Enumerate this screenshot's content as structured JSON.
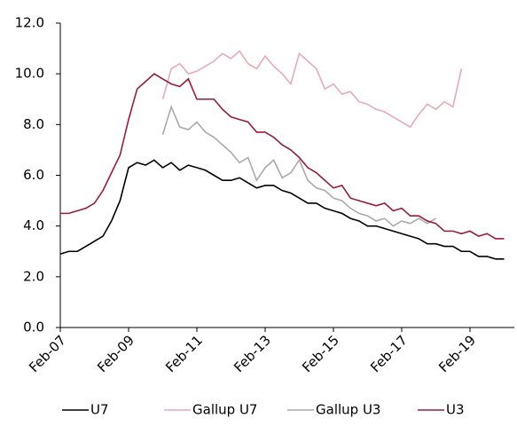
{
  "chart_data": {
    "type": "line",
    "categories": [
      "Feb-07",
      null,
      null,
      null,
      null,
      null,
      null,
      null,
      "Feb-09",
      null,
      null,
      null,
      null,
      null,
      null,
      null,
      "Feb-11",
      null,
      null,
      null,
      null,
      null,
      null,
      null,
      "Feb-13",
      null,
      null,
      null,
      null,
      null,
      null,
      null,
      "Feb-15",
      null,
      null,
      null,
      null,
      null,
      null,
      null,
      "Feb-17",
      null,
      null,
      null,
      null,
      null,
      null,
      null,
      "Feb-19",
      null,
      null,
      null,
      null
    ],
    "series": [
      {
        "name": "U7",
        "color": "#000000",
        "values": [
          2.9,
          3.0,
          3.0,
          3.2,
          3.4,
          3.6,
          4.2,
          5.0,
          6.3,
          6.5,
          6.4,
          6.6,
          6.3,
          6.5,
          6.2,
          6.4,
          6.3,
          6.2,
          6.0,
          5.8,
          5.8,
          5.9,
          5.7,
          5.5,
          5.6,
          5.6,
          5.4,
          5.3,
          5.1,
          4.9,
          4.9,
          4.7,
          4.6,
          4.5,
          4.3,
          4.2,
          4.0,
          4.0,
          3.9,
          3.8,
          3.7,
          3.6,
          3.5,
          3.3,
          3.3,
          3.2,
          3.2,
          3.0,
          3.0,
          2.8,
          2.8,
          2.7,
          2.7
        ]
      },
      {
        "name": "Gallup U7",
        "color": "#e8a9b8",
        "values": [
          null,
          null,
          null,
          null,
          null,
          null,
          null,
          null,
          null,
          null,
          null,
          null,
          9.0,
          10.2,
          10.4,
          10.0,
          10.1,
          10.3,
          10.5,
          10.8,
          10.6,
          10.9,
          10.4,
          10.2,
          10.7,
          10.3,
          10.0,
          9.6,
          10.8,
          10.5,
          10.2,
          9.4,
          9.6,
          9.2,
          9.3,
          8.9,
          8.8,
          8.6,
          8.5,
          8.3,
          8.1,
          7.9,
          8.4,
          8.8,
          8.6,
          8.9,
          8.7,
          10.2,
          null,
          null,
          null,
          null,
          null
        ]
      },
      {
        "name": "Gallup U3",
        "color": "#aaaaaa",
        "values": [
          null,
          null,
          null,
          null,
          null,
          null,
          null,
          null,
          null,
          null,
          null,
          null,
          7.6,
          8.7,
          7.9,
          7.8,
          8.1,
          7.7,
          7.5,
          7.2,
          6.9,
          6.5,
          6.7,
          5.8,
          6.3,
          6.6,
          5.9,
          6.1,
          6.6,
          5.8,
          5.5,
          5.4,
          5.1,
          5.0,
          4.7,
          4.5,
          4.4,
          4.2,
          4.3,
          4.0,
          4.2,
          4.1,
          4.3,
          4.1,
          4.3,
          null,
          null,
          null,
          null,
          null,
          null,
          null,
          null
        ]
      },
      {
        "name": "U3",
        "color": "#9b1b3d",
        "values": [
          4.5,
          4.5,
          4.6,
          4.7,
          4.9,
          5.4,
          6.1,
          6.8,
          8.2,
          9.4,
          9.7,
          10.0,
          9.8,
          9.6,
          9.5,
          9.8,
          9.0,
          9.0,
          9.0,
          8.6,
          8.3,
          8.2,
          8.1,
          7.7,
          7.7,
          7.5,
          7.2,
          7.0,
          6.7,
          6.3,
          6.1,
          5.8,
          5.5,
          5.6,
          5.1,
          5.0,
          4.9,
          4.8,
          4.9,
          4.6,
          4.7,
          4.4,
          4.4,
          4.2,
          4.1,
          3.8,
          3.8,
          3.7,
          3.8,
          3.6,
          3.7,
          3.5,
          3.5
        ]
      }
    ],
    "ylim": [
      0,
      12
    ],
    "yticks": [
      {
        "value": 0,
        "label": "0.0"
      },
      {
        "value": 2,
        "label": "2.0"
      },
      {
        "value": 4,
        "label": "4.0"
      },
      {
        "value": 6,
        "label": "6.0"
      },
      {
        "value": 8,
        "label": "8.0"
      },
      {
        "value": 10,
        "label": "10.0"
      },
      {
        "value": 12,
        "label": "12.0"
      }
    ],
    "grid": false,
    "legend": "bottom"
  }
}
